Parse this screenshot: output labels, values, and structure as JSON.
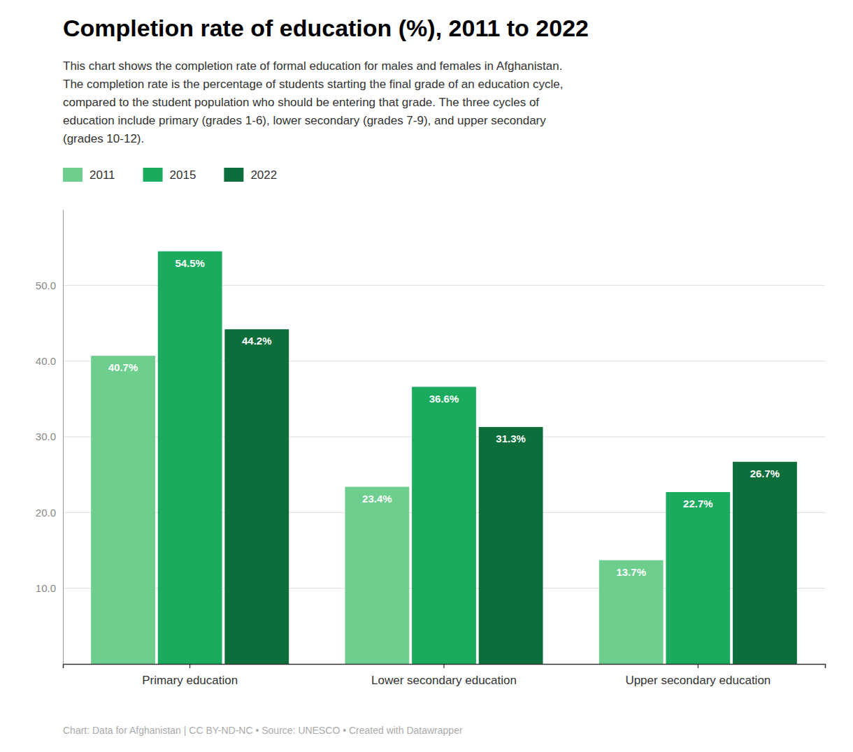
{
  "chart_data": {
    "type": "bar",
    "title": "Completion rate of education (%), 2011 to 2022",
    "subtitle": "This chart shows the completion rate of formal education for males and females in Afghanistan.\nThe completion rate is the percentage of students starting the final grade of an education cycle,\ncompared to the student population who should be entering that grade. The three cycles of\neducation include primary (grades 1-6), lower secondary (grades 7-9), and upper secondary\n(grades 10-12).",
    "footer": "Chart: Data for Afghanistan | CC BY-ND-NC • Source: UNESCO • Created with Datawrapper",
    "categories": [
      "Primary education",
      "Lower secondary education",
      "Upper secondary education"
    ],
    "series": [
      {
        "name": "2011",
        "color": "#6dce8d",
        "values": [
          40.7,
          23.4,
          13.7
        ],
        "value_labels": [
          "40.7%",
          "23.4%",
          "13.7%"
        ]
      },
      {
        "name": "2015",
        "color": "#1aab5e",
        "values": [
          54.5,
          36.6,
          22.7
        ],
        "value_labels": [
          "54.5%",
          "36.6%",
          "22.7%"
        ]
      },
      {
        "name": "2022",
        "color": "#0d6e3b",
        "values": [
          44.2,
          31.3,
          26.7
        ],
        "value_labels": [
          "44.2%",
          "31.3%",
          "26.7%"
        ]
      }
    ],
    "ylim": [
      0,
      60
    ],
    "yticks": [
      {
        "value": 10,
        "label": "10.0"
      },
      {
        "value": 20,
        "label": "20.0"
      },
      {
        "value": 30,
        "label": "30.0"
      },
      {
        "value": 40,
        "label": "40.0"
      },
      {
        "value": 50,
        "label": "50.0"
      }
    ],
    "grid": true,
    "legend": "top-left",
    "data_labels": true
  }
}
